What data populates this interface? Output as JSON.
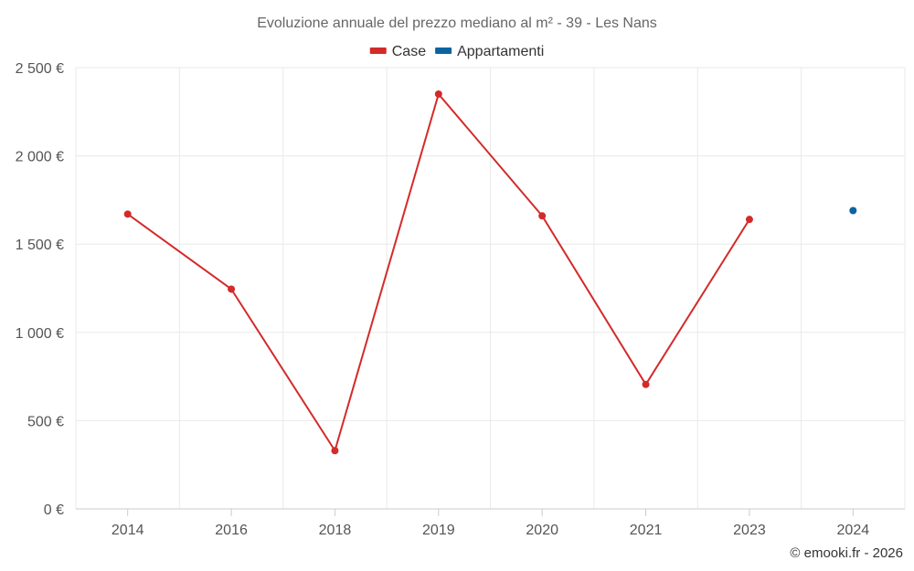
{
  "chart_data": {
    "type": "line",
    "title": "Evoluzione annuale del prezzo mediano al m² - 39 - Les Nans",
    "categories": [
      "2014",
      "2016",
      "2018",
      "2019",
      "2020",
      "2021",
      "2023",
      "2024"
    ],
    "series": [
      {
        "name": "Case",
        "color": "#d32a2a",
        "values": [
          1670,
          1245,
          330,
          2350,
          1660,
          705,
          1640,
          null
        ]
      },
      {
        "name": "Appartamenti",
        "color": "#0b64a0",
        "values": [
          null,
          null,
          null,
          null,
          null,
          null,
          null,
          1690
        ]
      }
    ],
    "ylim": [
      0,
      2500
    ],
    "yticks": [
      0,
      500,
      1000,
      1500,
      2000,
      2500
    ],
    "ytick_labels": [
      "0 €",
      "500 €",
      "1 000 €",
      "1 500 €",
      "2 000 €",
      "2 500 €"
    ],
    "xlabel": "",
    "ylabel": "",
    "grid": true,
    "legend_position": "top-center"
  },
  "credit": "© emooki.fr - 2026"
}
